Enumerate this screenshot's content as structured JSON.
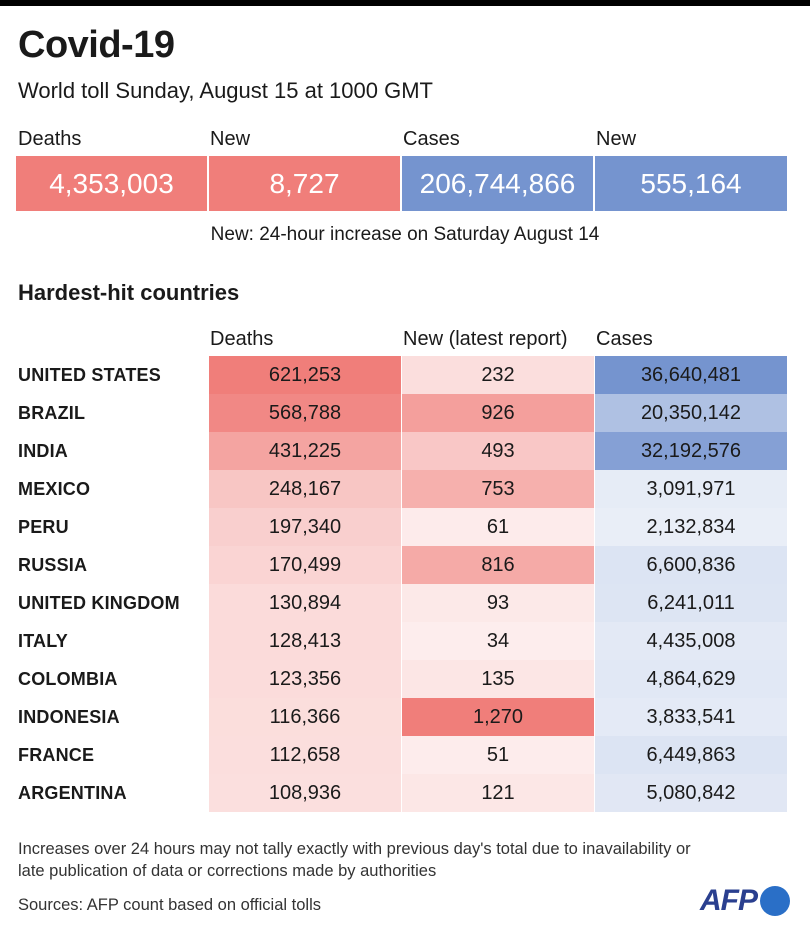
{
  "title": "Covid-19",
  "subtitle": "World toll Sunday, August 15 at 1000 GMT",
  "stats": [
    {
      "label": "Deaths",
      "value": "4,353,003",
      "color": "#f07e7a"
    },
    {
      "label": "New",
      "value": "8,727",
      "color": "#f07e7a"
    },
    {
      "label": "Cases",
      "value": "206,744,866",
      "color": "#7594cf"
    },
    {
      "label": "New",
      "value": "555,164",
      "color": "#7594cf"
    }
  ],
  "note": "New: 24-hour increase on Saturday August 14",
  "section_title": "Hardest-hit countries",
  "chart_data": {
    "type": "table",
    "title": "Hardest-hit countries",
    "columns": [
      "Deaths",
      "New (latest report)",
      "Cases"
    ],
    "rows": [
      {
        "country": "UNITED STATES",
        "deaths": 621253,
        "deaths_label": "621,253",
        "new": 232,
        "new_label": "232",
        "cases": 36640481,
        "cases_label": "36,640,481"
      },
      {
        "country": "BRAZIL",
        "deaths": 568788,
        "deaths_label": "568,788",
        "new": 926,
        "new_label": "926",
        "cases": 20350142,
        "cases_label": "20,350,142"
      },
      {
        "country": "INDIA",
        "deaths": 431225,
        "deaths_label": "431,225",
        "new": 493,
        "new_label": "493",
        "cases": 32192576,
        "cases_label": "32,192,576"
      },
      {
        "country": "MEXICO",
        "deaths": 248167,
        "deaths_label": "248,167",
        "new": 753,
        "new_label": "753",
        "cases": 3091971,
        "cases_label": "3,091,971"
      },
      {
        "country": "PERU",
        "deaths": 197340,
        "deaths_label": "197,340",
        "new": 61,
        "new_label": "61",
        "cases": 2132834,
        "cases_label": "2,132,834"
      },
      {
        "country": "RUSSIA",
        "deaths": 170499,
        "deaths_label": "170,499",
        "new": 816,
        "new_label": "816",
        "cases": 6600836,
        "cases_label": "6,600,836"
      },
      {
        "country": "UNITED KINGDOM",
        "deaths": 130894,
        "deaths_label": "130,894",
        "new": 93,
        "new_label": "93",
        "cases": 6241011,
        "cases_label": "6,241,011"
      },
      {
        "country": "ITALY",
        "deaths": 128413,
        "deaths_label": "128,413",
        "new": 34,
        "new_label": "34",
        "cases": 4435008,
        "cases_label": "4,435,008"
      },
      {
        "country": "COLOMBIA",
        "deaths": 123356,
        "deaths_label": "123,356",
        "new": 135,
        "new_label": "135",
        "cases": 4864629,
        "cases_label": "4,864,629"
      },
      {
        "country": "INDONESIA",
        "deaths": 116366,
        "deaths_label": "116,366",
        "new": 1270,
        "new_label": "1,270",
        "cases": 3833541,
        "cases_label": "3,833,541"
      },
      {
        "country": "FRANCE",
        "deaths": 112658,
        "deaths_label": "112,658",
        "new": 51,
        "new_label": "51",
        "cases": 6449863,
        "cases_label": "6,449,863"
      },
      {
        "country": "ARGENTINA",
        "deaths": 108936,
        "deaths_label": "108,936",
        "new": 121,
        "new_label": "121",
        "cases": 5080842,
        "cases_label": "5,080,842"
      }
    ]
  },
  "footnote": "Increases over 24 hours may not tally exactly with previous day's total due to inavailability or late publication of data or corrections made by authorities",
  "sources": "Sources: AFP count based on official tolls",
  "logo_text": "AFP",
  "colors": {
    "deaths_accent": "#f07e7a",
    "cases_accent": "#7594cf"
  }
}
